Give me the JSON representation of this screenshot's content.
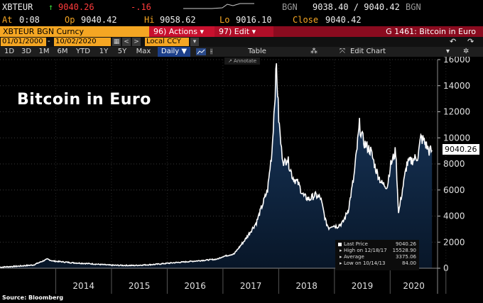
{
  "ticker": {
    "symbol": "XBTEUR",
    "arrow": "↑",
    "last": "9040.26",
    "change": "-.16",
    "bgn_label": "BGN",
    "bid_ask": "9038.40 / 9040.42",
    "bgn_label2": "BGN",
    "at_label": "At",
    "at_time": "0:08",
    "op_label": "Op",
    "op_value": "9040.42",
    "hi_label": "Hi",
    "hi_value": "9058.62",
    "lo_label": "Lo",
    "lo_value": "9016.10",
    "close_label": "Close",
    "close_value": "9040.42"
  },
  "titlebar": {
    "security": "XBTEUR BGN Curncy",
    "actions": "96) Actions ▾",
    "edit": "97) Edit ▾",
    "chart_name": "G 1461: Bitcoin in Euro"
  },
  "datebar": {
    "start_date": "01/01/2000",
    "dash": "-",
    "end_date": "10/02/2020",
    "currency": "Local CCY",
    "undo": "↶",
    "redo": "↷"
  },
  "ranges": [
    "1D",
    "3D",
    "1M",
    "6M",
    "YTD",
    "1Y",
    "5Y",
    "Max"
  ],
  "frequency": "Daily ▼",
  "toolbar": {
    "table": "Table",
    "edit_chart": "Edit Chart",
    "annotate": "Annotate"
  },
  "chart_data": {
    "type": "area",
    "title": "Bitcoin in Euro",
    "xlabel": "",
    "ylabel": "",
    "x_ticks": [
      "2014",
      "2015",
      "2016",
      "2017",
      "2018",
      "2019",
      "2020"
    ],
    "ylim": [
      0,
      16000
    ],
    "y_ticks": [
      0,
      2000,
      4000,
      6000,
      8000,
      10000,
      12000,
      14000,
      16000
    ],
    "last_value_label": "9040.26",
    "series": [
      {
        "x": [
          2013.0,
          2013.3,
          2013.6,
          2013.85,
          2013.95,
          2014.1,
          2014.3,
          2014.6,
          2015.0,
          2015.4,
          2015.8,
          2016.0,
          2016.5,
          2016.9,
          2017.0,
          2017.2,
          2017.4,
          2017.6,
          2017.8,
          2017.88,
          2017.96,
          2018.0,
          2018.05,
          2018.1,
          2018.15,
          2018.25,
          2018.35,
          2018.45,
          2018.55,
          2018.65,
          2018.75,
          2018.85,
          2018.9,
          2018.96,
          2019.05,
          2019.15,
          2019.25,
          2019.35,
          2019.45,
          2019.5,
          2019.55,
          2019.65,
          2019.75,
          2019.85,
          2019.95,
          2020.0,
          2020.1,
          2020.15,
          2020.2,
          2020.3,
          2020.4,
          2020.5,
          2020.55,
          2020.6,
          2020.65,
          2020.7,
          2020.75
        ],
        "y": [
          80,
          150,
          250,
          700,
          550,
          500,
          420,
          350,
          230,
          210,
          300,
          380,
          550,
          700,
          900,
          1100,
          2200,
          3500,
          6000,
          9000,
          15528.9,
          11500,
          9000,
          8000,
          8500,
          7000,
          6500,
          5500,
          5300,
          5600,
          5400,
          3500,
          3100,
          3300,
          3200,
          3500,
          4500,
          7000,
          11000,
          10000,
          9500,
          9000,
          7500,
          6500,
          6300,
          7800,
          9000,
          4200,
          5500,
          8000,
          8300,
          8600,
          10000,
          9800,
          9400,
          9000,
          9040.26
        ]
      }
    ]
  },
  "legend": {
    "rows": [
      {
        "label": "Last Price",
        "value": "9040.26"
      },
      {
        "label": "High on 12/18/17",
        "value": "15528.90"
      },
      {
        "label": "Average",
        "value": "3375.06"
      },
      {
        "label": "Low on 10/14/13",
        "value": "84.00"
      }
    ]
  },
  "source": "Source: Bloomberg",
  "colors": {
    "accent": "#f5a623",
    "red": "#c8102e",
    "area_fill": "#0f2a4a",
    "line": "#ffffff"
  }
}
